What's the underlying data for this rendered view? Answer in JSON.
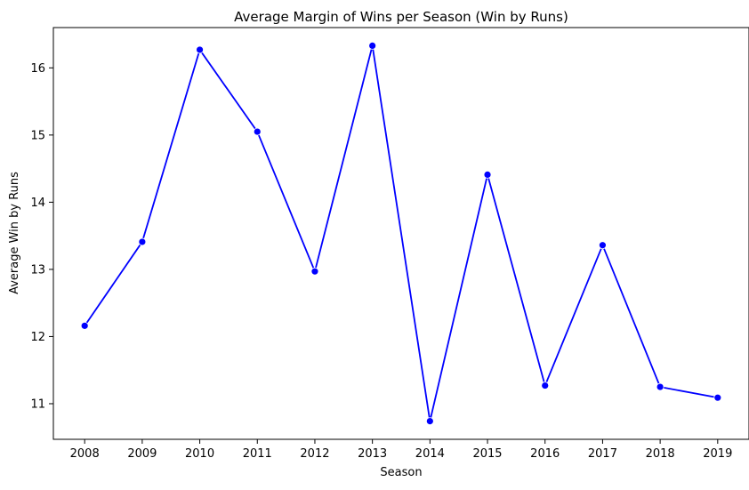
{
  "chart_data": {
    "type": "line",
    "title": "Average Margin of Wins per Season (Win by Runs)",
    "xlabel": "Season",
    "ylabel": "Average Win by Runs",
    "x": [
      2008,
      2009,
      2010,
      2011,
      2012,
      2013,
      2014,
      2015,
      2016,
      2017,
      2018,
      2019
    ],
    "series": [
      {
        "values": [
          12.16,
          13.41,
          16.27,
          15.05,
          12.97,
          16.33,
          10.74,
          14.41,
          11.27,
          13.36,
          11.25,
          11.09
        ],
        "color": "#0000ff",
        "marker": "circle"
      }
    ],
    "xticks": [
      "2008",
      "2009",
      "2010",
      "2011",
      "2012",
      "2013",
      "2014",
      "2015",
      "2016",
      "2017",
      "2018",
      "2019"
    ],
    "yticks": [
      11,
      12,
      13,
      14,
      15,
      16
    ],
    "ylim": [
      10.47,
      16.6
    ],
    "grid": false,
    "legend": false
  }
}
